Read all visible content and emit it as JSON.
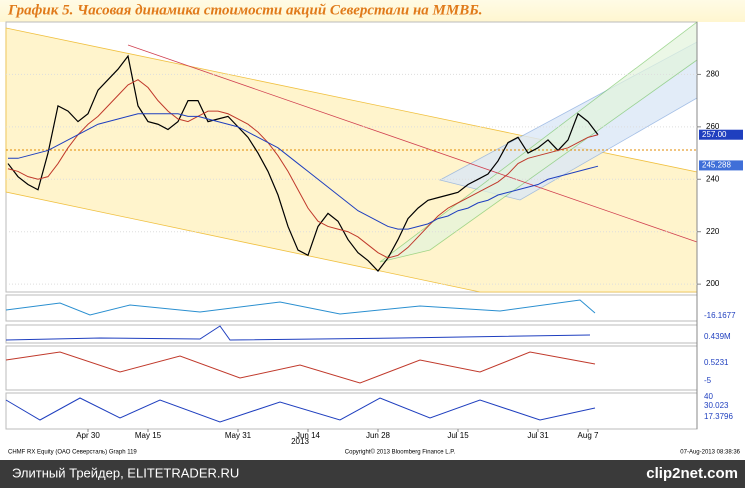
{
  "chart_data": {
    "type": "line",
    "title": "График 5.   Часовая динамика стоимости акций Северстали на ММВБ.",
    "categories": [
      null,
      null,
      null,
      null,
      null,
      null,
      null,
      null,
      "Apr 30",
      null,
      null,
      null,
      null,
      null,
      "May 15",
      null,
      null,
      null,
      null,
      null,
      null,
      null,
      null,
      "May 31",
      null,
      null,
      null,
      null,
      null,
      null,
      "Jun 14",
      null,
      null,
      null,
      null,
      null,
      null,
      "Jun 28",
      null,
      null,
      null,
      null,
      null,
      null,
      null,
      "Jul 15",
      null,
      null,
      null,
      null,
      null,
      null,
      null,
      "Jul 31",
      null,
      null,
      null,
      null,
      "Aug 7",
      null
    ],
    "year_label": "2013",
    "series": [
      {
        "color": "#000000",
        "values": [
          246,
          241,
          238,
          236,
          250,
          268,
          266,
          262,
          265,
          274,
          278,
          282,
          287,
          268,
          262,
          261,
          259,
          262,
          270,
          270,
          262,
          263,
          264,
          260,
          256,
          250,
          243,
          234,
          222,
          213,
          211,
          222,
          227,
          224,
          217,
          212,
          209,
          205,
          210,
          217,
          225,
          229,
          232,
          233,
          234,
          235,
          238,
          240,
          242,
          247,
          254,
          256,
          250,
          252,
          255,
          251,
          255,
          265,
          262,
          257
        ]
      },
      {
        "color": "#c0392b",
        "values": [
          244,
          243,
          241,
          240,
          241,
          246,
          252,
          257,
          261,
          264,
          268,
          272,
          276,
          278,
          275,
          270,
          266,
          263,
          262,
          264,
          266,
          266,
          265,
          263,
          261,
          258,
          254,
          249,
          243,
          236,
          229,
          224,
          222,
          221,
          220,
          218,
          215,
          212,
          210,
          211,
          214,
          218,
          222,
          226,
          229,
          231,
          233,
          235,
          237,
          239,
          242,
          246,
          248,
          249,
          250,
          251,
          252,
          254,
          256,
          257
        ]
      },
      {
        "color": "#1f3fbf",
        "values": [
          248,
          248,
          249,
          250,
          251,
          253,
          255,
          257,
          259,
          261,
          262,
          263,
          264,
          265,
          265,
          265,
          265,
          265,
          264,
          264,
          263,
          262,
          261,
          260,
          258,
          256,
          254,
          252,
          249,
          246,
          243,
          240,
          237,
          234,
          231,
          228,
          226,
          224,
          222,
          221,
          221,
          222,
          223,
          225,
          226,
          228,
          229,
          231,
          232,
          234,
          235,
          236,
          237,
          238,
          240,
          241,
          242,
          243,
          244,
          245
        ]
      }
    ],
    "ylim": [
      197,
      300
    ],
    "yticks": [
      200,
      220,
      240,
      260,
      280
    ],
    "last_labels": [
      {
        "value": 257,
        "label": "257.00"
      },
      {
        "value": 245.288,
        "label": "245.288"
      }
    ],
    "indicator_labels": [
      "-16.1677",
      "0.439M",
      "0.5231",
      "-5",
      "40",
      "30.023",
      "17.3796"
    ],
    "footer_left": "CHMF RX Equity (ОАО Северсталь) Graph 119",
    "footer_center": "Copyright© 2013 Bloomberg Finance L.P.",
    "footer_right": "07-Aug-2013 08:38:36",
    "watermark": "Элитный Трейдер, ELITETRADER.RU",
    "brand": "clip2net.com"
  }
}
